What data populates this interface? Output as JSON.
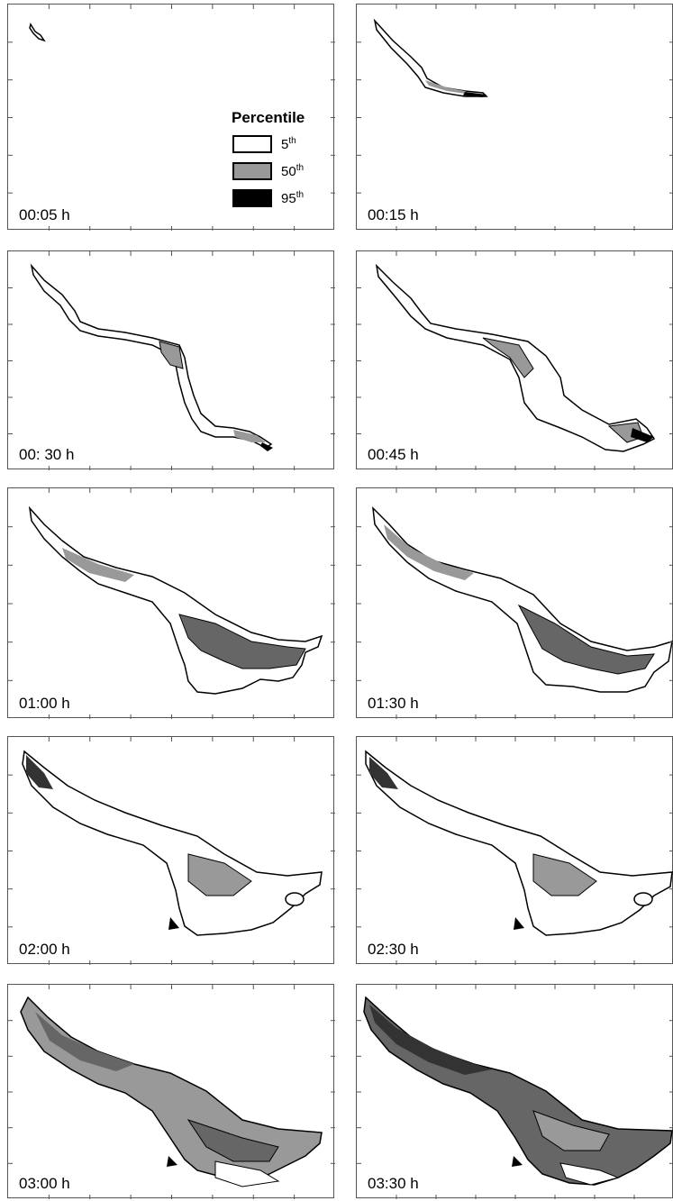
{
  "legend": {
    "title": "Percentile",
    "items": [
      {
        "base": "5",
        "sup": "th",
        "color": "#ffffff"
      },
      {
        "base": "50",
        "sup": "th",
        "color": "#999999"
      },
      {
        "base": "95",
        "sup": "th",
        "color": "#000000"
      }
    ]
  },
  "colors": {
    "p5": "#ffffff",
    "p50": "#999999",
    "p95": "#000000",
    "frame": "#555555"
  },
  "panels": [
    {
      "id": "p1",
      "label": "00:05 h"
    },
    {
      "id": "p2",
      "label": "00:15 h"
    },
    {
      "id": "p3",
      "label": "00: 30 h"
    },
    {
      "id": "p4",
      "label": "00:45 h"
    },
    {
      "id": "p5",
      "label": "01:00 h"
    },
    {
      "id": "p6",
      "label": "01:30 h"
    },
    {
      "id": "p7",
      "label": "02:00 h"
    },
    {
      "id": "p8",
      "label": "02:30 h"
    },
    {
      "id": "p9",
      "label": "03:00 h"
    },
    {
      "id": "p10",
      "label": "03:30 h"
    }
  ]
}
